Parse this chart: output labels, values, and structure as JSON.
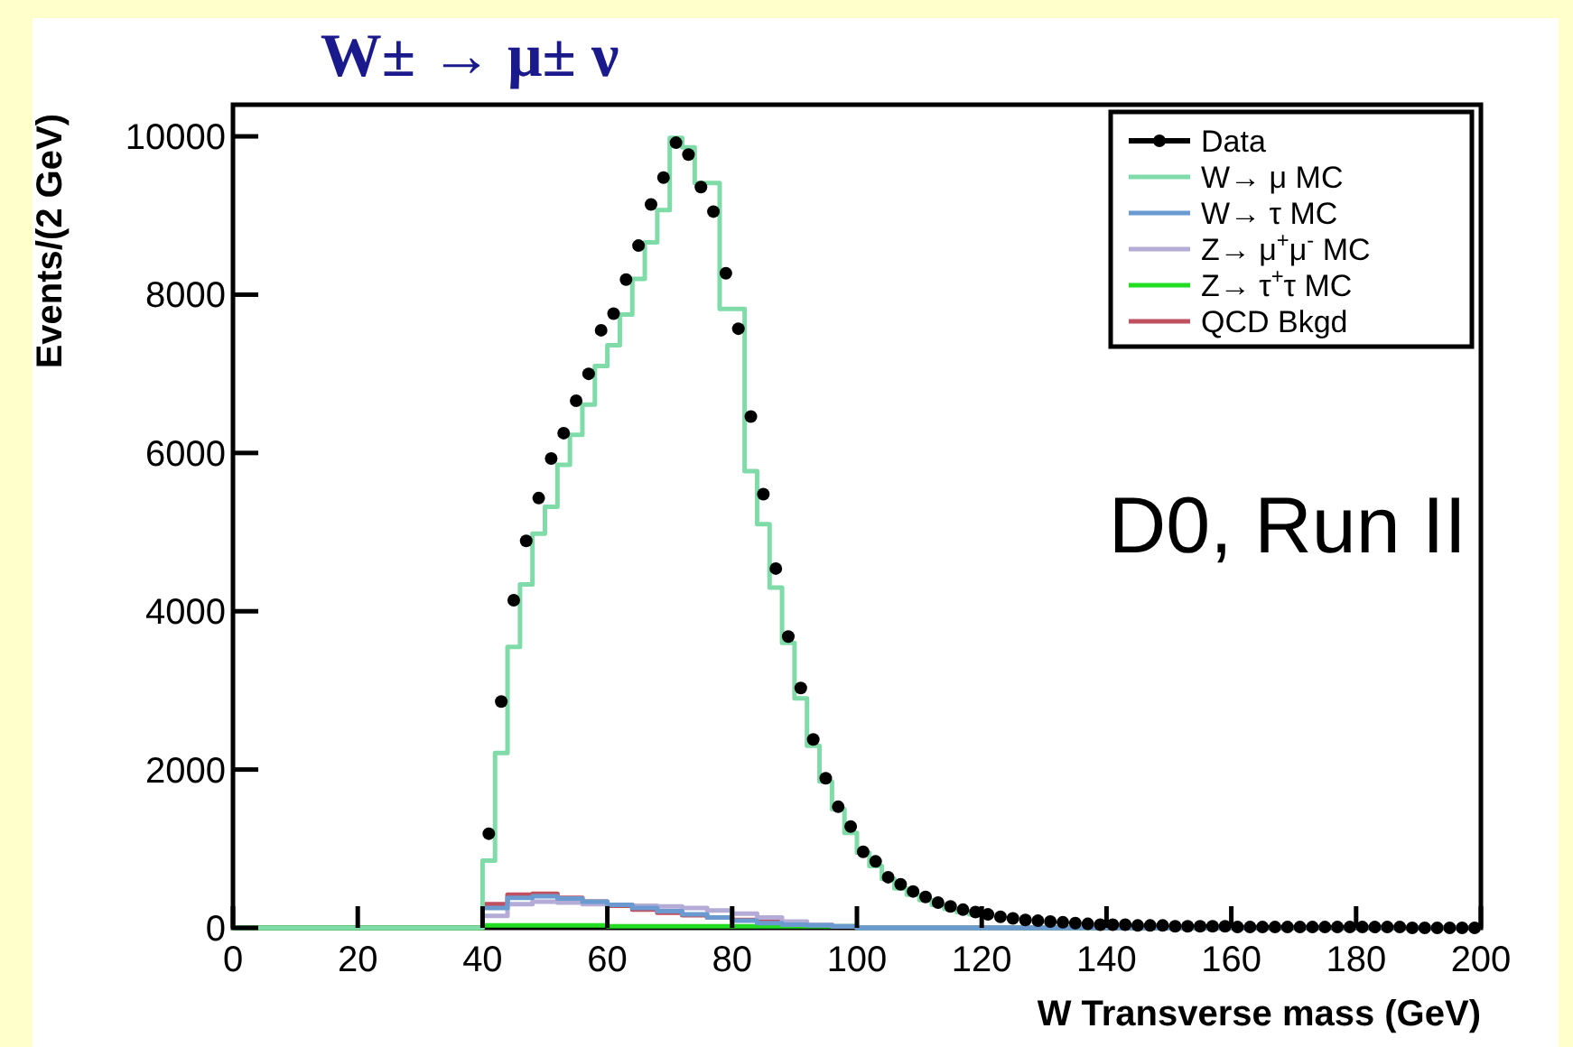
{
  "chart_data": {
    "type": "scatter",
    "title": "W± → μ± ν",
    "xlabel": "W Transverse mass (GeV)",
    "ylabel": "Events/(2 GeV)",
    "xlim": [
      0,
      200
    ],
    "ylim": [
      0,
      10400
    ],
    "xticks": [
      0,
      20,
      40,
      60,
      80,
      100,
      120,
      140,
      160,
      180,
      200
    ],
    "yticks": [
      0,
      2000,
      4000,
      6000,
      8000,
      10000
    ],
    "legend": "top right",
    "grid": false,
    "annotations": [
      "D0, Run II"
    ],
    "series": [
      {
        "name": "Data",
        "marker": "circle",
        "color": "#000000",
        "x": [
          41,
          43,
          45,
          47,
          49,
          51,
          53,
          55,
          57,
          59,
          61,
          63,
          65,
          67,
          69,
          71,
          73,
          75,
          77,
          79,
          81,
          83,
          85,
          87,
          89,
          91,
          93,
          95,
          97,
          99,
          101,
          103,
          105,
          107,
          109,
          111,
          113,
          115,
          117,
          119,
          121,
          123,
          125,
          127,
          129,
          131,
          133,
          135,
          137,
          139,
          141,
          143,
          145,
          147,
          149,
          151,
          153,
          155,
          157,
          159,
          161,
          163,
          165,
          167,
          169,
          171,
          173,
          175,
          177,
          179,
          181,
          183,
          185,
          187,
          189,
          191,
          193,
          195,
          197,
          199
        ],
        "values": [
          1190,
          2860,
          4140,
          4890,
          5430,
          5930,
          6250,
          6660,
          7000,
          7550,
          7760,
          8190,
          8620,
          9140,
          9480,
          9920,
          9770,
          9360,
          9050,
          8270,
          7570,
          6460,
          5480,
          4540,
          3680,
          3030,
          2380,
          1890,
          1530,
          1280,
          960,
          840,
          640,
          550,
          460,
          390,
          320,
          270,
          230,
          200,
          170,
          140,
          120,
          100,
          90,
          80,
          70,
          60,
          50,
          40,
          40,
          40,
          30,
          30,
          30,
          20,
          20,
          20,
          20,
          20,
          10,
          10,
          10,
          10,
          10,
          10,
          10,
          10,
          10,
          10,
          10,
          10,
          10,
          10,
          0,
          0,
          0,
          0,
          0,
          0
        ]
      },
      {
        "name": "W→ μ  MC",
        "type": "step",
        "line_style": "solid",
        "color": "#7fdca8",
        "x": [
          0,
          40,
          42,
          44,
          46,
          48,
          50,
          52,
          54,
          56,
          58,
          60,
          62,
          64,
          66,
          68,
          70,
          72,
          74,
          76,
          78,
          80,
          82,
          84,
          86,
          88,
          90,
          92,
          94,
          96,
          98,
          100,
          102,
          104,
          106,
          108,
          110,
          112,
          114,
          116,
          118,
          120
        ],
        "values": [
          0,
          850,
          2210,
          3550,
          4340,
          4980,
          5320,
          5850,
          6230,
          6610,
          7100,
          7360,
          7750,
          8200,
          8660,
          9070,
          9980,
          9860,
          9410,
          9410,
          7820,
          7820,
          5770,
          5100,
          4300,
          3600,
          2900,
          2300,
          1850,
          1500,
          1200,
          950,
          780,
          620,
          500,
          420,
          350,
          290,
          240,
          200,
          170,
          140
        ]
      },
      {
        "name": "W→ τ MC",
        "type": "step",
        "line_style": "solid",
        "color": "#6a9ad0",
        "x": [
          40,
          44,
          48,
          52,
          56,
          60,
          64,
          68,
          72,
          76,
          80,
          84,
          88,
          92,
          96,
          100,
          200
        ],
        "values": [
          250,
          380,
          400,
          370,
          330,
          290,
          250,
          210,
          170,
          130,
          90,
          60,
          40,
          30,
          20,
          0,
          0
        ]
      },
      {
        "name": "Z→ μ$^{+}$μ$^{-}$ MC",
        "type": "step",
        "line_style": "solid",
        "color": "#b4acd6",
        "x": [
          40,
          44,
          48,
          52,
          56,
          60,
          64,
          68,
          72,
          76,
          80,
          84,
          88,
          92,
          96,
          100,
          200
        ],
        "values": [
          150,
          300,
          330,
          320,
          300,
          290,
          280,
          270,
          250,
          220,
          180,
          130,
          80,
          40,
          20,
          0,
          0
        ]
      },
      {
        "name": "Z→ τ$^{+}$τ MC",
        "type": "step",
        "line_style": "solid",
        "color": "#22dd22",
        "x": [
          0,
          40,
          60,
          100,
          200
        ],
        "values": [
          0,
          30,
          20,
          0,
          0
        ]
      },
      {
        "name": "QCD Bkgd",
        "type": "step",
        "line_style": "solid",
        "color": "#c05060",
        "x": [
          40,
          44,
          48,
          52,
          56,
          60,
          64,
          68,
          72,
          76,
          80,
          84,
          88,
          92,
          96
        ],
        "values": [
          300,
          420,
          430,
          380,
          330,
          280,
          230,
          190,
          160,
          130,
          100,
          80,
          60,
          40,
          0
        ]
      }
    ]
  }
}
